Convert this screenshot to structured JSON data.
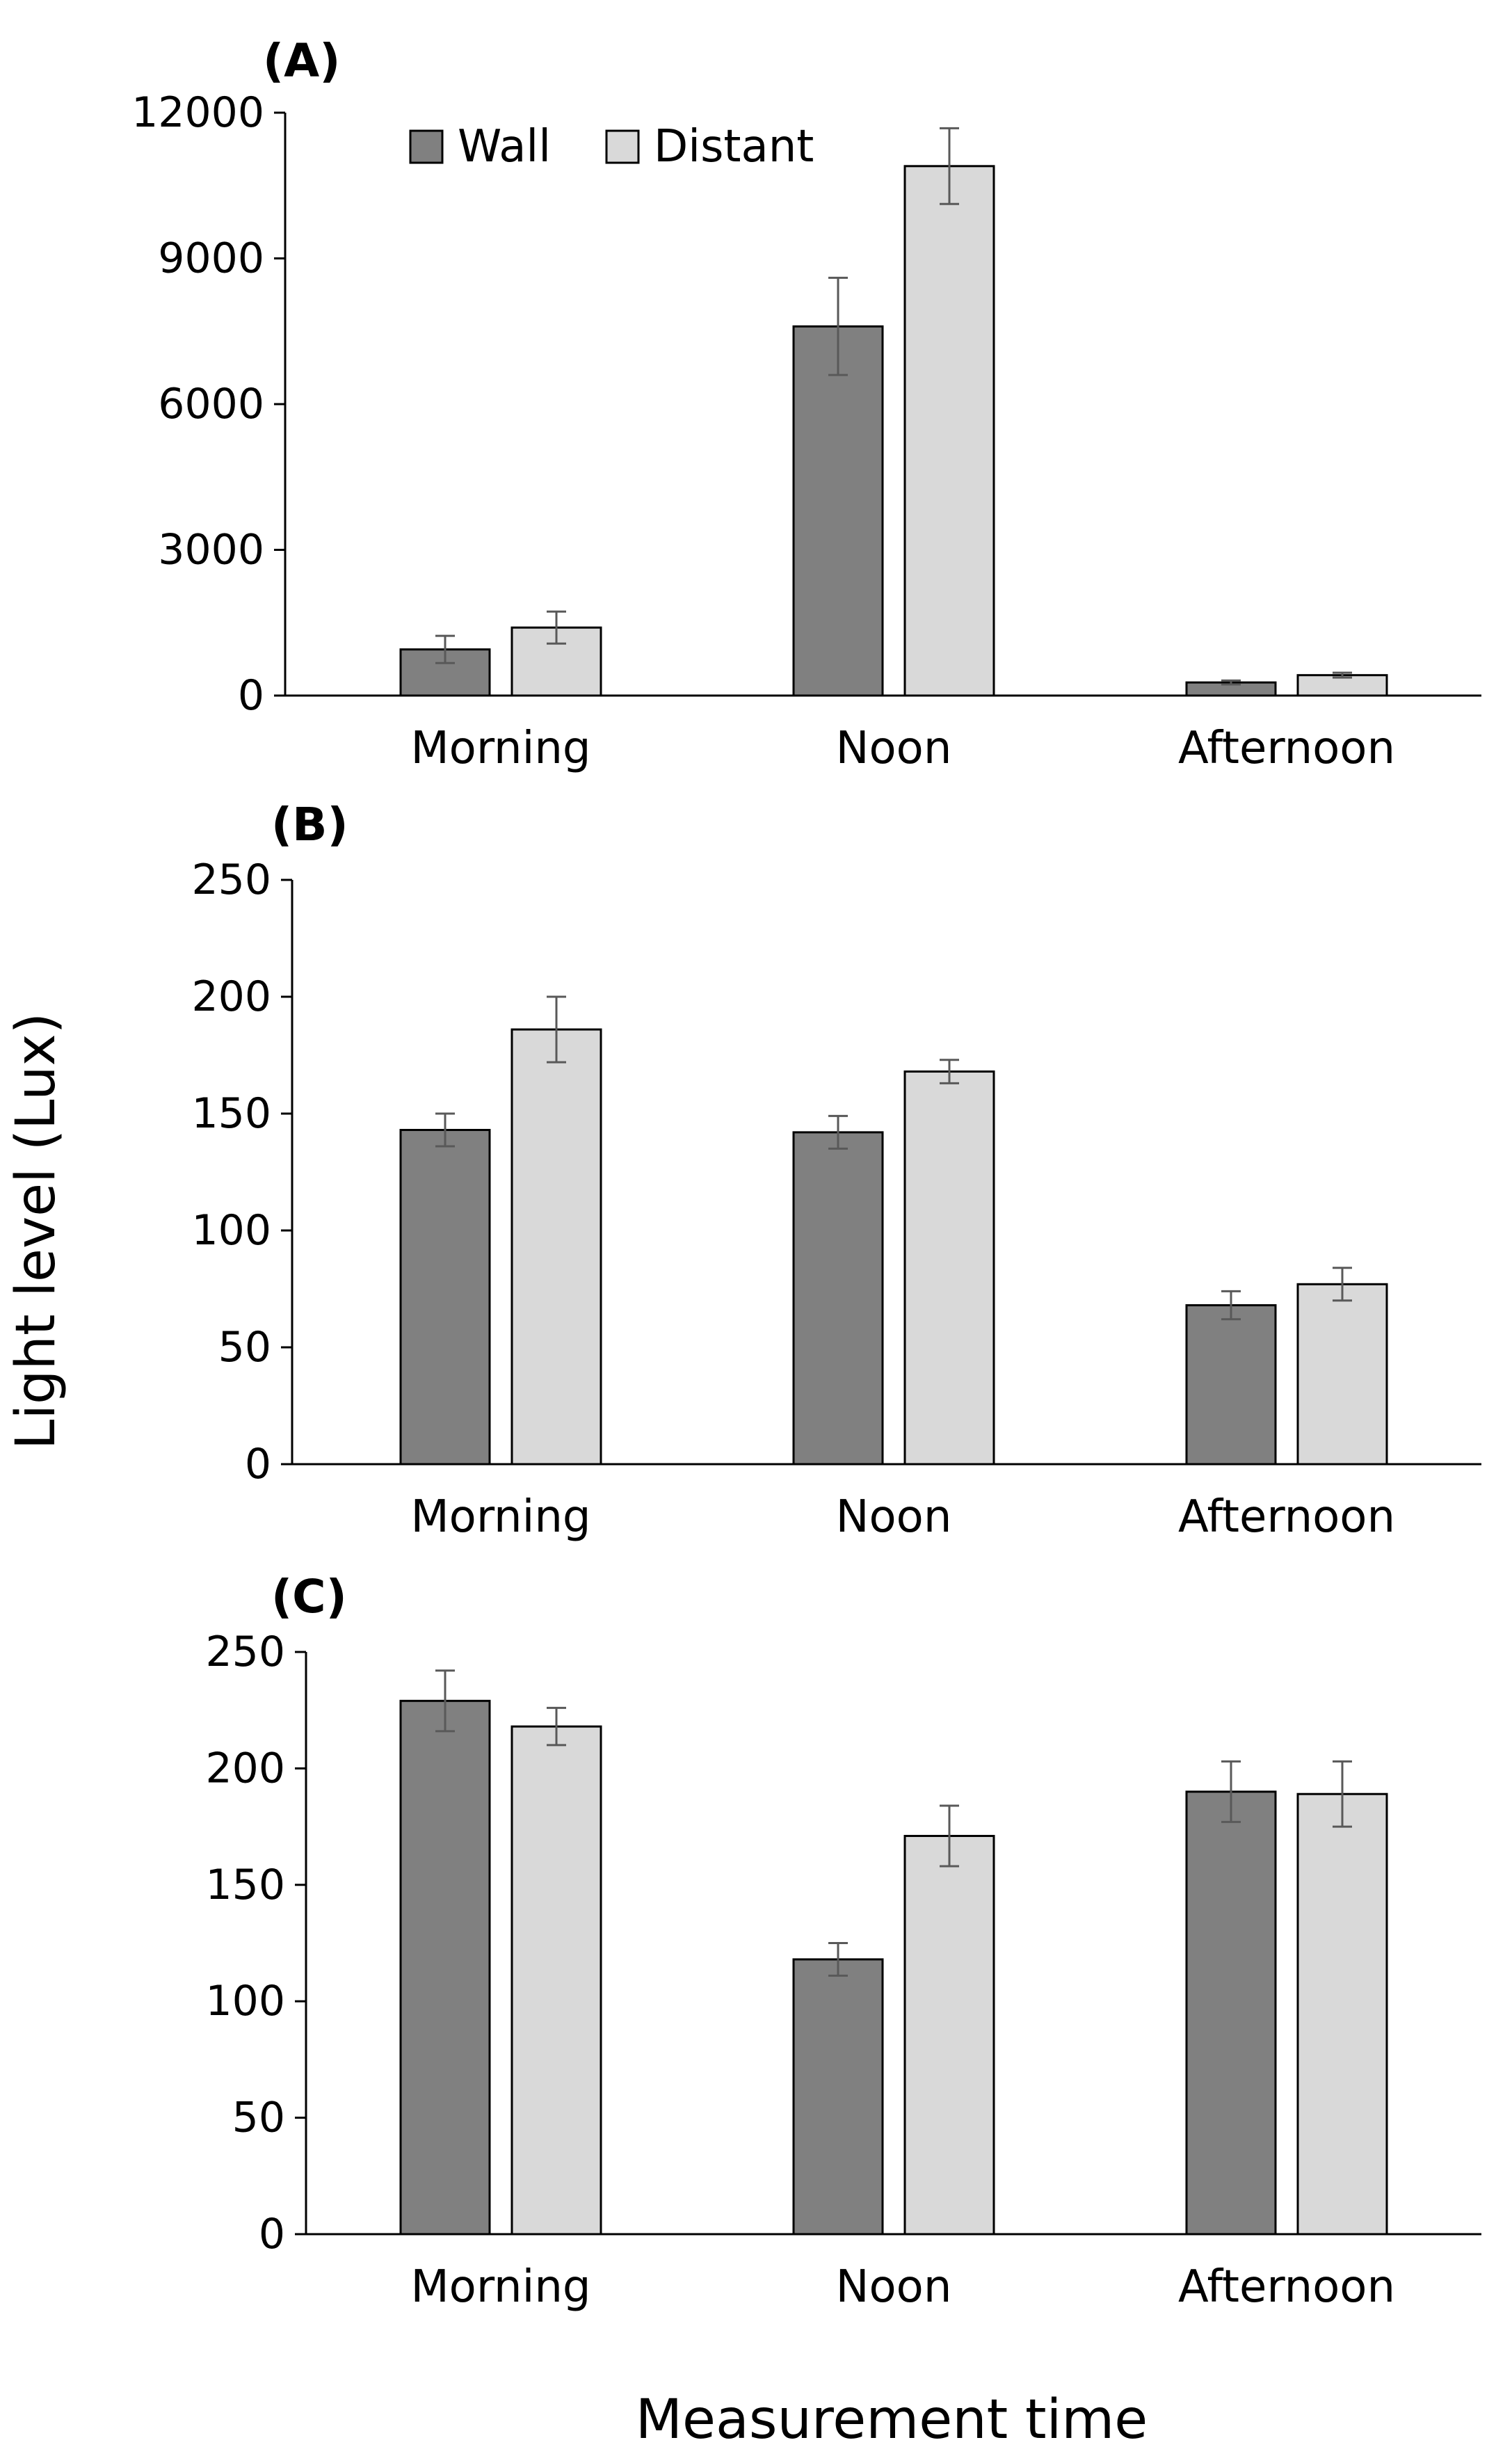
{
  "colors": {
    "wall": "#808080",
    "distant": "#d9d9d9",
    "errorbar": "#595959",
    "axis": "#000000"
  },
  "legend": [
    {
      "name": "Wall",
      "color_key": "wall"
    },
    {
      "name": "Distant",
      "color_key": "distant"
    }
  ],
  "y_axis_title": "Light level (Lux)",
  "x_axis_title": "Measurement time",
  "chart_data": [
    {
      "type": "bar",
      "panel_label": "(A)",
      "categories": [
        "Morning",
        "Noon",
        "Afternoon"
      ],
      "ylim": [
        0,
        12000
      ],
      "yticks": [
        0,
        3000,
        6000,
        9000,
        12000
      ],
      "ytick_labels": [
        "0",
        "3000",
        "6000",
        "9000",
        "12000"
      ],
      "series": [
        {
          "name": "Wall",
          "values": [
            950,
            7600,
            270
          ],
          "errors": [
            280,
            1000,
            40
          ]
        },
        {
          "name": "Distant",
          "values": [
            1400,
            10900,
            420
          ],
          "errors": [
            330,
            780,
            50
          ]
        }
      ]
    },
    {
      "type": "bar",
      "panel_label": "(B)",
      "categories": [
        "Morning",
        "Noon",
        "Afternoon"
      ],
      "ylim": [
        0,
        250
      ],
      "yticks": [
        0,
        50,
        100,
        150,
        200,
        250
      ],
      "ytick_labels": [
        "0",
        "50",
        "100",
        "150",
        "200",
        "250"
      ],
      "series": [
        {
          "name": "Wall",
          "values": [
            143,
            142,
            68
          ],
          "errors": [
            7,
            7,
            6
          ]
        },
        {
          "name": "Distant",
          "values": [
            186,
            168,
            77
          ],
          "errors": [
            14,
            5,
            7
          ]
        }
      ]
    },
    {
      "type": "bar",
      "panel_label": "(C)",
      "categories": [
        "Morning",
        "Noon",
        "Afternoon"
      ],
      "ylim": [
        0,
        250
      ],
      "yticks": [
        0,
        50,
        100,
        150,
        200,
        250
      ],
      "ytick_labels": [
        "0",
        "50",
        "100",
        "150",
        "200",
        "250"
      ],
      "series": [
        {
          "name": "Wall",
          "values": [
            229,
            118,
            190
          ],
          "errors": [
            13,
            7,
            13
          ]
        },
        {
          "name": "Distant",
          "values": [
            218,
            171,
            189
          ],
          "errors": [
            8,
            13,
            14
          ]
        }
      ]
    }
  ]
}
